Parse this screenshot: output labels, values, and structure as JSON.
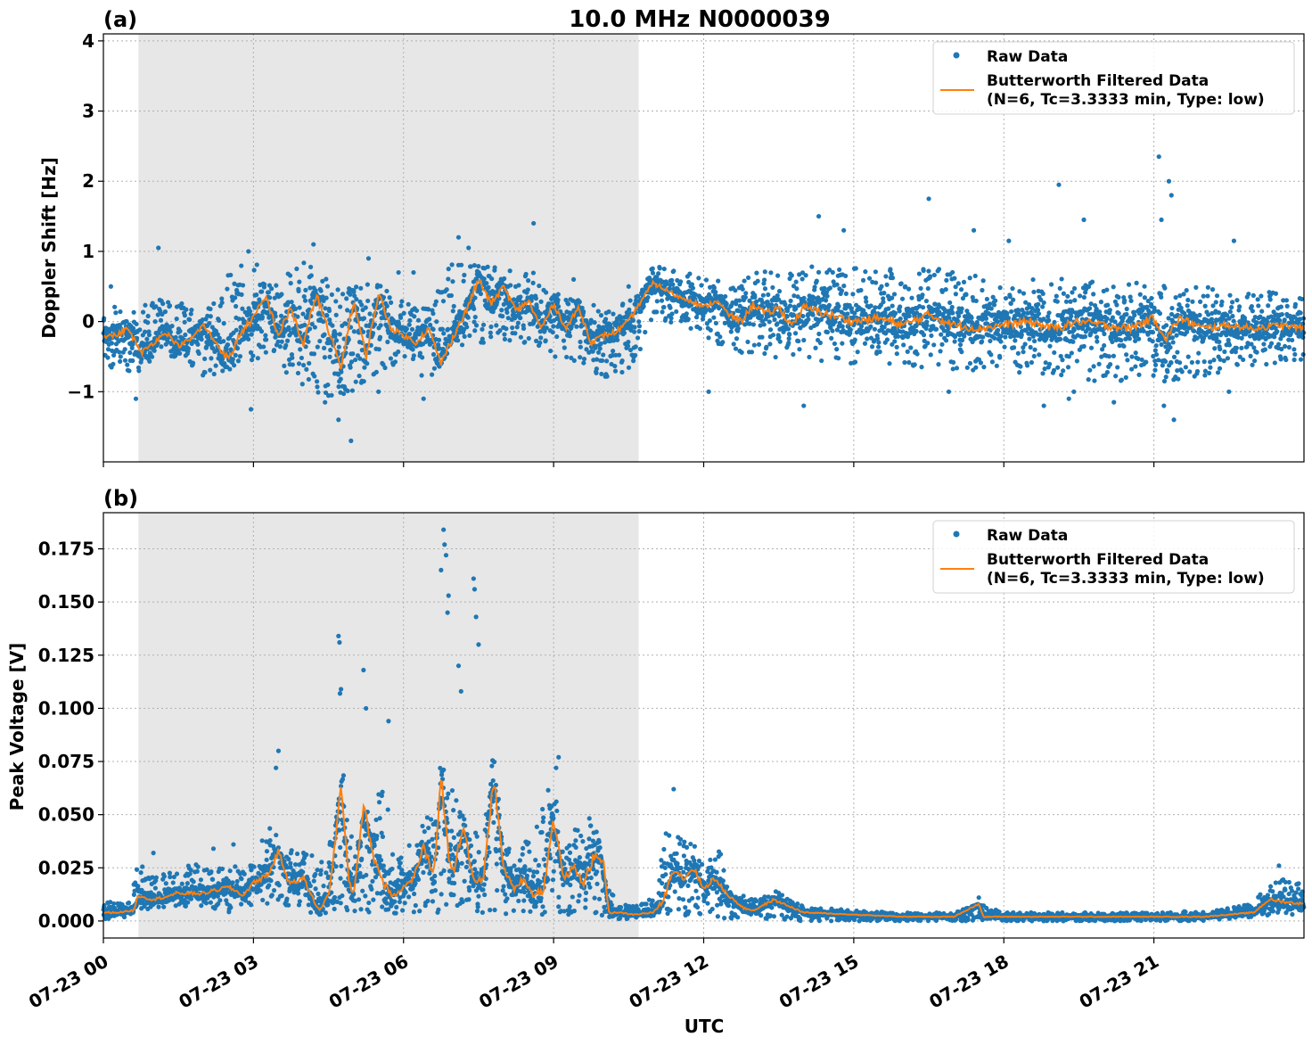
{
  "title": "10.0 MHz N0000039",
  "xlabel": "UTC",
  "x_tick_labels": [
    "07-23 00",
    "07-23 03",
    "07-23 06",
    "07-23 09",
    "07-23 12",
    "07-23 15",
    "07-23 18",
    "07-23 21"
  ],
  "colors": {
    "raw": "#1f77b4",
    "filtered": "#ff7f0e",
    "shade": "#e7e7e7"
  },
  "legend": {
    "raw_label": "Raw Data",
    "filtered_line1": "Butterworth Filtered Data",
    "filtered_line2": "(N=6, Tc=3.3333 min, Type: low)"
  },
  "chart_data": [
    {
      "panel": "(a)",
      "type": "scatter",
      "ylabel": "Doppler Shift [Hz]",
      "xlim_hours": [
        0,
        24
      ],
      "ylim": [
        -2.0,
        4.1
      ],
      "y_ticks": [
        -1,
        0,
        1,
        2,
        3,
        4
      ],
      "y_tick_labels": [
        "−1",
        "0",
        "1",
        "2",
        "3",
        "4"
      ],
      "grid": true,
      "legend_position": "top-right",
      "shaded_interval_hours": [
        0.7,
        10.7
      ],
      "series": [
        {
          "name": "Raw Data",
          "style": "points",
          "hours": [
            0,
            0.5,
            1,
            1.5,
            2,
            2.5,
            3,
            3.5,
            4,
            4.5,
            5,
            5.5,
            6,
            6.5,
            7,
            7.5,
            8,
            8.5,
            9,
            9.5,
            10,
            10.5,
            11,
            11.5,
            12,
            12.5,
            13,
            13.5,
            14,
            14.5,
            15,
            15.5,
            16,
            16.5,
            17,
            17.5,
            18,
            18.5,
            19,
            19.5,
            20,
            20.5,
            21,
            21.5,
            22,
            22.5,
            23,
            23.5,
            24
          ],
          "upper": [
            0.3,
            0.1,
            0.35,
            0.3,
            0.1,
            0.7,
            0.9,
            0.6,
            0.85,
            0.6,
            0.5,
            0.55,
            0.3,
            0.2,
            0.9,
            0.9,
            0.7,
            0.8,
            0.45,
            0.3,
            0.2,
            0.3,
            0.8,
            0.75,
            0.6,
            0.6,
            0.75,
            0.7,
            0.8,
            0.75,
            0.8,
            0.7,
            0.8,
            0.8,
            0.7,
            0.65,
            0.55,
            0.6,
            0.65,
            0.55,
            0.6,
            0.6,
            0.6,
            0.55,
            0.5,
            0.45,
            0.45,
            0.45,
            0.4
          ],
          "lower": [
            -0.55,
            -0.9,
            -0.55,
            -0.5,
            -0.8,
            -0.7,
            -0.6,
            -0.7,
            -0.9,
            -1.2,
            -1.0,
            -0.7,
            -0.6,
            -0.9,
            -0.3,
            -0.4,
            -0.25,
            -0.35,
            -0.5,
            -0.6,
            -0.8,
            -0.7,
            -0.05,
            0.0,
            -0.25,
            -0.4,
            -0.5,
            -0.55,
            -0.55,
            -0.6,
            -0.6,
            -0.6,
            -0.65,
            -0.65,
            -0.7,
            -0.7,
            -0.75,
            -0.8,
            -0.8,
            -0.85,
            -0.85,
            -0.85,
            -0.9,
            -0.85,
            -0.8,
            -0.7,
            -0.65,
            -0.6,
            -0.6
          ],
          "outliers": [
            [
              0.15,
              0.5
            ],
            [
              1.1,
              1.05
            ],
            [
              2.9,
              1.0
            ],
            [
              4.2,
              1.1
            ],
            [
              5.3,
              0.9
            ],
            [
              5.9,
              0.7
            ],
            [
              6.2,
              0.7
            ],
            [
              6.9,
              0.75
            ],
            [
              7.1,
              1.2
            ],
            [
              7.3,
              1.05
            ],
            [
              8.6,
              1.4
            ],
            [
              9.4,
              0.6
            ],
            [
              10.5,
              0.5
            ],
            [
              4.7,
              -1.4
            ],
            [
              4.95,
              -1.7
            ],
            [
              5.5,
              -1.0
            ],
            [
              6.4,
              -1.1
            ],
            [
              2.95,
              -1.25
            ],
            [
              0.65,
              -1.1
            ],
            [
              14.3,
              1.5
            ],
            [
              14.8,
              1.3
            ],
            [
              16.5,
              1.75
            ],
            [
              17.4,
              1.3
            ],
            [
              18.1,
              1.15
            ],
            [
              19.1,
              1.95
            ],
            [
              19.6,
              1.45
            ],
            [
              21.1,
              2.35
            ],
            [
              21.3,
              2.0
            ],
            [
              21.35,
              1.8
            ],
            [
              21.15,
              1.45
            ],
            [
              22.6,
              1.15
            ],
            [
              14.0,
              -1.2
            ],
            [
              16.9,
              -1.0
            ],
            [
              18.8,
              -1.2
            ],
            [
              19.3,
              -1.1
            ],
            [
              19.4,
              -1.0
            ],
            [
              20.2,
              -1.15
            ],
            [
              21.4,
              -1.4
            ],
            [
              21.2,
              -1.2
            ],
            [
              12.1,
              -1.0
            ],
            [
              22.5,
              -1.0
            ]
          ]
        },
        {
          "name": "Butterworth Filtered Data",
          "style": "line",
          "hours": [
            0,
            0.25,
            0.5,
            0.75,
            1,
            1.25,
            1.5,
            1.75,
            2,
            2.25,
            2.5,
            2.75,
            3,
            3.25,
            3.5,
            3.75,
            4,
            4.25,
            4.5,
            4.75,
            5,
            5.25,
            5.5,
            5.75,
            6,
            6.25,
            6.5,
            6.75,
            7,
            7.25,
            7.5,
            7.75,
            8,
            8.25,
            8.5,
            8.75,
            9,
            9.25,
            9.5,
            9.75,
            10,
            10.25,
            10.5,
            10.75,
            11,
            11.25,
            11.5,
            11.75,
            12,
            12.25,
            12.5,
            12.75,
            13,
            13.25,
            13.5,
            13.75,
            14,
            14.5,
            15,
            15.5,
            16,
            16.5,
            17,
            17.5,
            18,
            18.5,
            19,
            19.5,
            20,
            20.5,
            21,
            21.25,
            21.5,
            22,
            22.5,
            23,
            23.5,
            24
          ],
          "values": [
            -0.2,
            -0.2,
            -0.1,
            -0.45,
            -0.3,
            -0.15,
            -0.35,
            -0.25,
            -0.05,
            -0.3,
            -0.55,
            -0.15,
            0.05,
            0.35,
            -0.2,
            0.2,
            -0.35,
            0.4,
            -0.15,
            -0.65,
            0.3,
            -0.5,
            0.4,
            -0.1,
            -0.2,
            -0.3,
            -0.1,
            -0.6,
            -0.2,
            0.15,
            0.6,
            0.25,
            0.5,
            0.15,
            0.3,
            -0.1,
            0.25,
            -0.1,
            0.2,
            -0.3,
            -0.2,
            -0.15,
            0.0,
            0.3,
            0.55,
            0.45,
            0.35,
            0.3,
            0.2,
            0.3,
            0.1,
            0.0,
            0.25,
            0.1,
            0.2,
            -0.05,
            0.2,
            0.1,
            0.0,
            0.05,
            -0.05,
            0.1,
            -0.05,
            -0.1,
            -0.05,
            0.0,
            -0.1,
            0.0,
            -0.05,
            -0.1,
            0.05,
            -0.25,
            0.05,
            -0.1,
            -0.05,
            -0.1,
            -0.05,
            -0.1
          ]
        }
      ]
    },
    {
      "panel": "(b)",
      "type": "scatter",
      "ylabel": "Peak Voltage [V]",
      "xlim_hours": [
        0,
        24
      ],
      "ylim": [
        -0.008,
        0.192
      ],
      "y_ticks": [
        0.0,
        0.025,
        0.05,
        0.075,
        0.1,
        0.125,
        0.15,
        0.175
      ],
      "y_tick_labels": [
        "0.000",
        "0.025",
        "0.050",
        "0.075",
        "0.100",
        "0.125",
        "0.150",
        "0.175"
      ],
      "grid": true,
      "legend_position": "top-right",
      "shaded_interval_hours": [
        0.7,
        10.7
      ],
      "series": [
        {
          "name": "Raw Data",
          "style": "points",
          "hours": [
            0,
            0.5,
            0.7,
            1,
            1.5,
            2,
            2.5,
            3,
            3.3,
            3.6,
            4,
            4.3,
            4.6,
            4.8,
            5,
            5.3,
            5.6,
            5.9,
            6.2,
            6.5,
            6.8,
            7.0,
            7.3,
            7.6,
            7.8,
            8.0,
            8.3,
            8.6,
            9.0,
            9.2,
            9.5,
            9.8,
            10.0,
            10.3,
            10.6,
            11.0,
            11.3,
            11.5,
            11.8,
            12.0,
            12.3,
            12.6,
            13.0,
            13.4,
            14,
            15,
            16,
            17,
            17.5,
            18,
            19,
            20,
            21,
            22,
            22.5,
            23,
            23.5,
            24
          ],
          "upper": [
            0.009,
            0.009,
            0.027,
            0.022,
            0.025,
            0.028,
            0.025,
            0.028,
            0.048,
            0.033,
            0.035,
            0.028,
            0.04,
            0.072,
            0.035,
            0.055,
            0.065,
            0.03,
            0.04,
            0.05,
            0.085,
            0.06,
            0.045,
            0.04,
            0.085,
            0.035,
            0.035,
            0.04,
            0.07,
            0.03,
            0.05,
            0.06,
            0.02,
            0.008,
            0.007,
            0.012,
            0.048,
            0.045,
            0.038,
            0.025,
            0.035,
            0.013,
            0.012,
            0.015,
            0.007,
            0.005,
            0.004,
            0.004,
            0.008,
            0.004,
            0.004,
            0.004,
            0.004,
            0.005,
            0.006,
            0.01,
            0.02,
            0.017
          ],
          "lower": [
            0.0,
            0.002,
            0.005,
            0.006,
            0.007,
            0.006,
            0.004,
            0.006,
            0.005,
            0.004,
            0.003,
            0.003,
            0.004,
            0.005,
            0.004,
            0.003,
            0.004,
            0.003,
            0.004,
            0.004,
            0.004,
            0.003,
            0.004,
            0.003,
            0.004,
            0.003,
            0.003,
            0.003,
            0.003,
            0.003,
            0.003,
            0.003,
            0.002,
            0.001,
            0.001,
            0.002,
            0.003,
            0.003,
            0.002,
            0.002,
            0.001,
            0.001,
            0.001,
            0.001,
            0.0,
            0.0,
            0.0,
            0.0,
            0.0,
            0.0,
            0.0,
            0.0,
            0.0,
            0.0,
            0.001,
            0.002,
            0.003,
            0.003
          ],
          "outliers": [
            [
              4.7,
              0.134
            ],
            [
              4.72,
              0.131
            ],
            [
              4.75,
              0.109
            ],
            [
              4.73,
              0.107
            ],
            [
              5.2,
              0.118
            ],
            [
              5.25,
              0.1
            ],
            [
              6.8,
              0.184
            ],
            [
              6.82,
              0.177
            ],
            [
              6.85,
              0.172
            ],
            [
              6.75,
              0.165
            ],
            [
              6.9,
              0.153
            ],
            [
              6.88,
              0.145
            ],
            [
              7.4,
              0.161
            ],
            [
              7.42,
              0.156
            ],
            [
              7.45,
              0.143
            ],
            [
              7.5,
              0.13
            ],
            [
              7.1,
              0.12
            ],
            [
              7.15,
              0.108
            ],
            [
              3.5,
              0.08
            ],
            [
              3.45,
              0.072
            ],
            [
              5.7,
              0.094
            ],
            [
              9.1,
              0.077
            ],
            [
              9.05,
              0.072
            ],
            [
              11.4,
              0.062
            ],
            [
              17.5,
              0.011
            ],
            [
              23.5,
              0.026
            ],
            [
              1.0,
              0.032
            ],
            [
              2.2,
              0.034
            ],
            [
              2.6,
              0.036
            ]
          ]
        },
        {
          "name": "Butterworth Filtered Data",
          "style": "line",
          "hours": [
            0,
            0.3,
            0.6,
            0.7,
            1.0,
            1.5,
            2.0,
            2.5,
            2.8,
            3.0,
            3.3,
            3.5,
            3.7,
            4.0,
            4.3,
            4.5,
            4.6,
            4.75,
            4.9,
            5.0,
            5.2,
            5.4,
            5.6,
            5.8,
            6.0,
            6.2,
            6.4,
            6.6,
            6.75,
            6.9,
            7.0,
            7.2,
            7.4,
            7.6,
            7.8,
            8.0,
            8.2,
            8.4,
            8.6,
            8.8,
            9.0,
            9.2,
            9.4,
            9.6,
            9.8,
            10.0,
            10.1,
            10.3,
            10.6,
            11.0,
            11.2,
            11.4,
            11.6,
            11.8,
            12.0,
            12.2,
            12.5,
            12.8,
            13.0,
            13.4,
            14.0,
            15.0,
            16.0,
            17.0,
            17.5,
            17.6,
            18.0,
            19.0,
            20.0,
            21.0,
            22.0,
            22.5,
            23.0,
            23.3,
            23.6,
            24.0
          ],
          "values": [
            0.004,
            0.004,
            0.005,
            0.012,
            0.01,
            0.013,
            0.013,
            0.016,
            0.012,
            0.018,
            0.022,
            0.033,
            0.018,
            0.02,
            0.005,
            0.012,
            0.03,
            0.064,
            0.02,
            0.012,
            0.055,
            0.03,
            0.018,
            0.012,
            0.016,
            0.02,
            0.035,
            0.02,
            0.069,
            0.03,
            0.024,
            0.045,
            0.018,
            0.02,
            0.068,
            0.025,
            0.015,
            0.02,
            0.012,
            0.015,
            0.048,
            0.02,
            0.025,
            0.018,
            0.03,
            0.028,
            0.004,
            0.004,
            0.003,
            0.004,
            0.01,
            0.025,
            0.02,
            0.025,
            0.015,
            0.02,
            0.012,
            0.006,
            0.005,
            0.01,
            0.004,
            0.003,
            0.002,
            0.002,
            0.008,
            0.002,
            0.002,
            0.002,
            0.002,
            0.002,
            0.002,
            0.003,
            0.004,
            0.01,
            0.009,
            0.008
          ]
        }
      ]
    }
  ]
}
